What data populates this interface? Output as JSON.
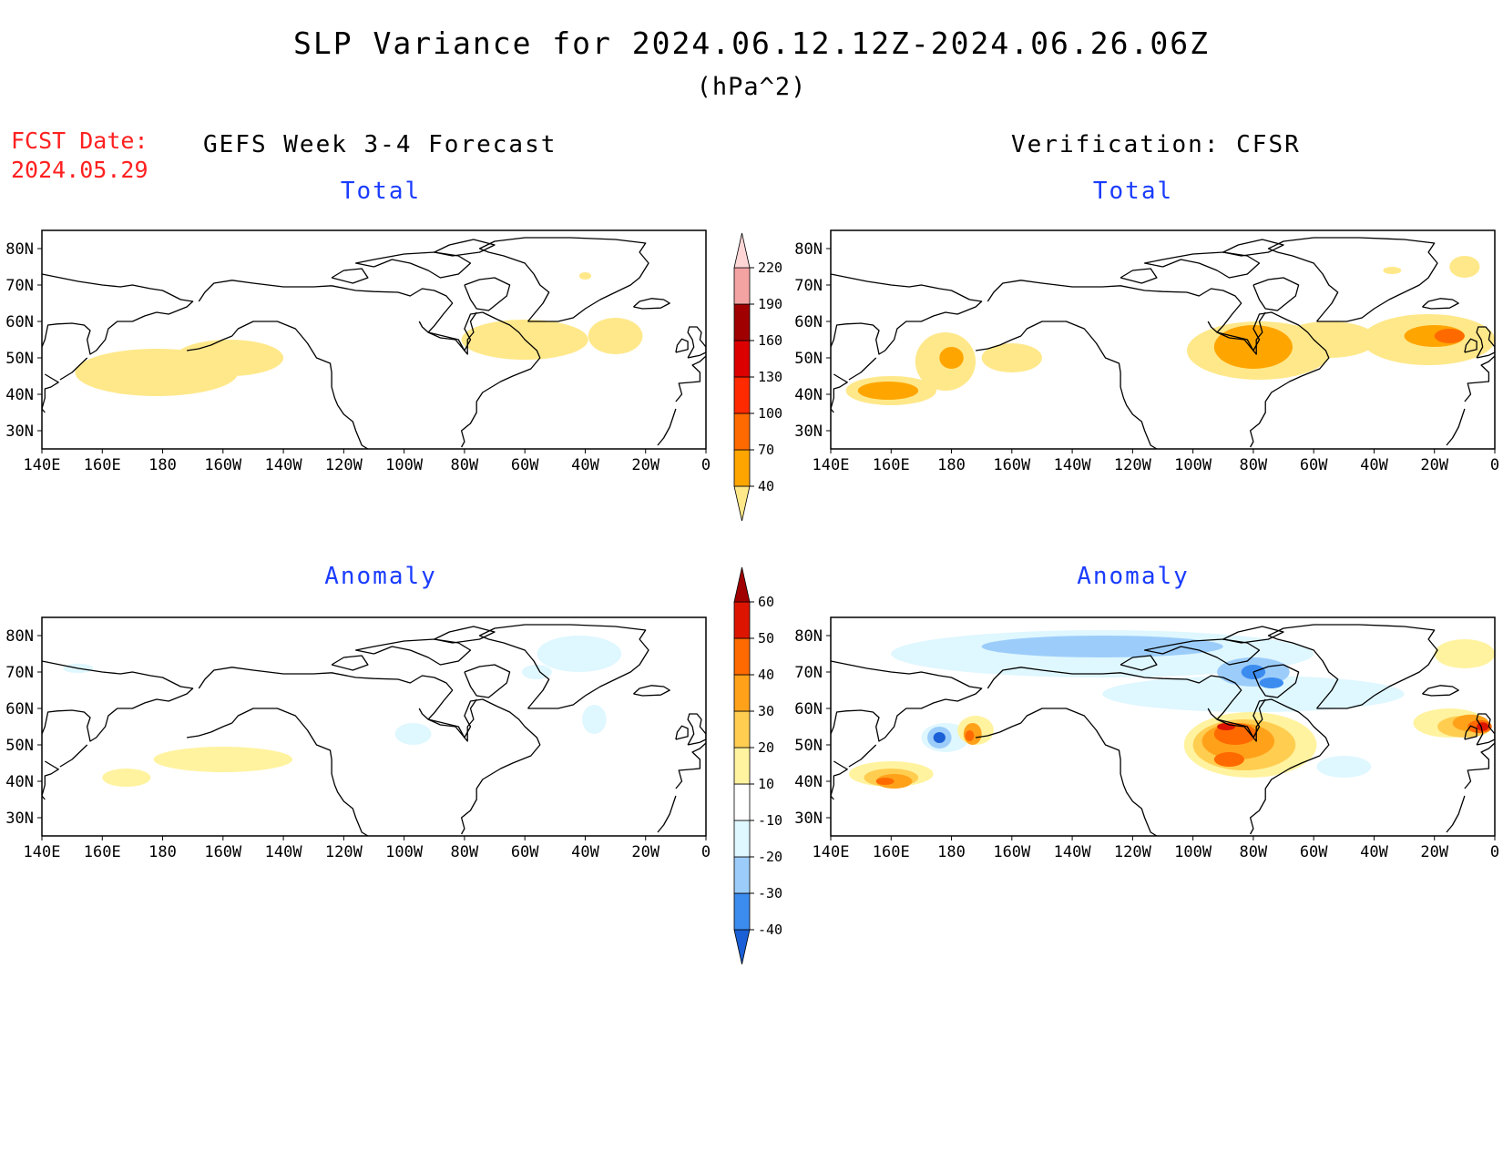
{
  "title": "SLP Variance for 2024.06.12.12Z-2024.06.26.06Z",
  "units": "(hPa^2)",
  "fcst_label": "FCST Date:",
  "fcst_date": "2024.05.29",
  "left_column_title": "GEFS Week 3-4 Forecast",
  "right_column_title": "Verification: CFSR",
  "panels": [
    {
      "name": "forecast-total",
      "subtitle": "Total",
      "field": "total"
    },
    {
      "name": "verification-total",
      "subtitle": "Total",
      "field": "total"
    },
    {
      "name": "forecast-anomaly",
      "subtitle": "Anomaly",
      "field": "anomaly"
    },
    {
      "name": "verification-anomaly",
      "subtitle": "Anomaly",
      "field": "anomaly"
    }
  ],
  "axes": {
    "lon_labels": [
      "140E",
      "160E",
      "180",
      "160W",
      "140W",
      "120W",
      "100W",
      "80W",
      "60W",
      "40W",
      "20W",
      "0"
    ],
    "lat_labels": [
      "80N",
      "70N",
      "60N",
      "50N",
      "40N",
      "30N"
    ],
    "lon_range_deg_east": [
      140,
      360
    ],
    "lat_range": [
      25,
      85
    ]
  },
  "colorbars": {
    "total": {
      "levels": [
        "40",
        "70",
        "100",
        "130",
        "160",
        "190",
        "220"
      ],
      "colors": [
        "#ffe88a",
        "#ffa500",
        "#ff6a00",
        "#ff2a00",
        "#dd0000",
        "#a00000",
        "#f4a3a3",
        "#ffd6d6"
      ]
    },
    "anomaly": {
      "levels": [
        "-40",
        "-30",
        "-20",
        "-10",
        "10",
        "20",
        "30",
        "40",
        "50",
        "60"
      ],
      "colors": [
        "#1a5fd6",
        "#3c8cf0",
        "#9ccdfa",
        "#dff7ff",
        "#ffffff",
        "#fff3a0",
        "#ffcd50",
        "#ffa21a",
        "#ff6a00",
        "#dd1500",
        "#a00000"
      ]
    }
  }
}
